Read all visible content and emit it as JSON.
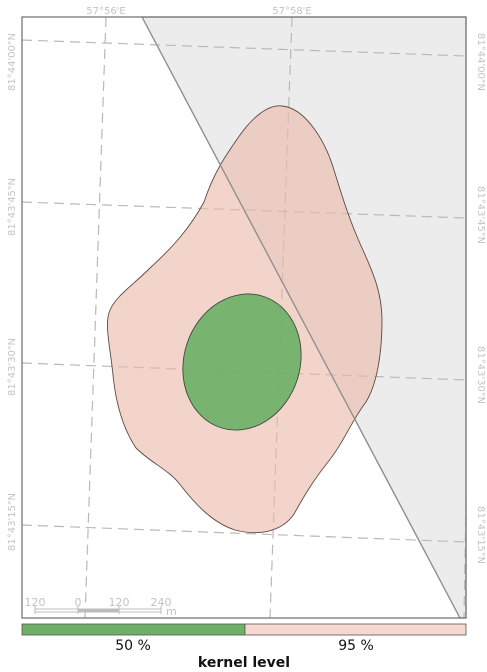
{
  "map": {
    "top_labels": [
      "57°56'E",
      "57°58'E"
    ],
    "left_labels": [
      "81°44'00\"N",
      "81°43'45\"N",
      "81°43'30\"N",
      "81°43'15\"N"
    ],
    "right_labels": [
      "81°44'00\"N",
      "81°43'45\"N",
      "81°43'30\"N",
      "81°43'15\"N"
    ],
    "scale_bar": {
      "ticks": [
        "120",
        "0",
        "120",
        "240"
      ],
      "unit": "m"
    },
    "colors": {
      "kernel_50": "#7cb872",
      "kernel_95": "#f1d0c5",
      "shaded_region": "#ececec",
      "frame": "#777777"
    }
  },
  "legend": {
    "title": "kernel level",
    "items": [
      {
        "label": "50 %",
        "color": "#6fb068"
      },
      {
        "label": "95 %",
        "color": "#f6d8cf"
      }
    ]
  }
}
